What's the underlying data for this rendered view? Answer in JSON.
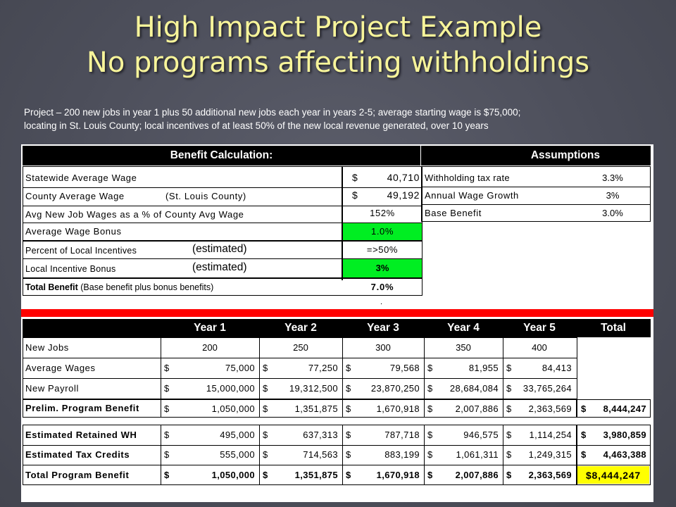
{
  "title": {
    "line1": "High Impact Project Example",
    "line2": "No programs affecting withholdings"
  },
  "description": {
    "line1": "Project – 200 new jobs in year 1 plus 50 additional new jobs each year in years 2-5; average starting wage is $75,000;",
    "line2": "locating in St. Louis County; local incentives of at least 50% of the new local revenue generated, over 10 years"
  },
  "benefit": {
    "header": "Benefit Calculation:",
    "rows": [
      {
        "label": "Statewide Average Wage",
        "note": "",
        "dollar": "$",
        "value": "40,710"
      },
      {
        "label": "County Average Wage",
        "note": "(St. Louis County)",
        "dollar": "$",
        "value": "49,192"
      },
      {
        "label": "Avg New Job Wages as a % of County Avg Wage",
        "note": "",
        "dollar": "",
        "value": "152%"
      },
      {
        "label": "Average Wage Bonus",
        "note": "",
        "dollar": "",
        "value": "1.0%"
      },
      {
        "label": "Percent of Local Incentives",
        "note": "(estimated)",
        "dollar": "",
        "value": "=>50%"
      },
      {
        "label": "Local Incentive Bonus",
        "note": "(estimated)",
        "dollar": "",
        "value": "3%"
      }
    ],
    "total_label_bold": "Total Benefit",
    "total_label_rest": "(Base benefit plus bonus benefits)",
    "total_value": "7.0%",
    "dot": "."
  },
  "assumptions": {
    "header": "Assumptions",
    "rows": [
      {
        "label": "Withholding tax rate",
        "value": "3.3%"
      },
      {
        "label": "Annual Wage Growth",
        "value": "3%"
      },
      {
        "label": "Base Benefit",
        "value": "3.0%"
      }
    ]
  },
  "years_table": {
    "headers": [
      "Year 1",
      "Year 2",
      "Year 3",
      "Year 4",
      "Year 5",
      "Total"
    ],
    "new_jobs": {
      "label": "New Jobs",
      "values": [
        "200",
        "250",
        "300",
        "350",
        "400"
      ]
    },
    "avg_wages": {
      "label": "Average Wages",
      "values": [
        "75,000",
        "77,250",
        "79,568",
        "81,955",
        "84,413"
      ]
    },
    "new_payroll": {
      "label": "New Payroll",
      "values": [
        "15,000,000",
        "19,312,500",
        "23,870,250",
        "28,684,084",
        "33,765,264"
      ]
    },
    "prelim": {
      "label": "Prelim. Program Benefit",
      "values": [
        "1,050,000",
        "1,351,875",
        "1,670,918",
        "2,007,886",
        "2,363,569"
      ],
      "total": "8,444,247"
    },
    "retained_wh": {
      "label": "Estimated Retained WH",
      "values": [
        "495,000",
        "637,313",
        "787,718",
        "946,575",
        "1,114,254"
      ],
      "total": "3,980,859"
    },
    "tax_credits": {
      "label": "Estimated Tax Credits",
      "values": [
        "555,000",
        "714,563",
        "883,199",
        "1,061,311",
        "1,249,315"
      ],
      "total": "4,463,388"
    },
    "total_program": {
      "label": "Total Program Benefit",
      "values": [
        "1,050,000",
        "1,351,875",
        "1,670,918",
        "2,007,886",
        "2,363,569"
      ],
      "total": "$8,444,247"
    },
    "dollar": "$"
  },
  "colors": {
    "title": "#f7f49a",
    "background": "#4c4e5a",
    "green_highlight": "#00ee22",
    "yellow_highlight": "#ffff00",
    "red_bar": "#ff0000"
  }
}
